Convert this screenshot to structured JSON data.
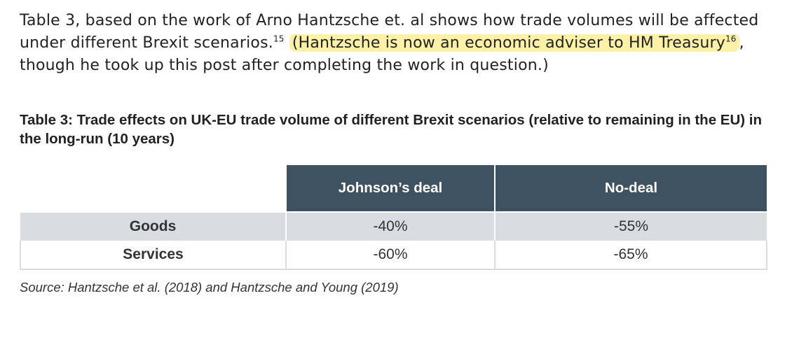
{
  "paragraph": {
    "text_before": "Table 3, based on the work of Arno Hantzsche et. al shows how trade volumes will be affected under different Brexit scenarios.",
    "footnote_15": "15",
    "space": " ",
    "highlight_part1": "(Hantzsche is now an economic adviser to HM Treasury",
    "footnote_16": "16",
    "text_after": ", though he took up this post after completing the work in question.)"
  },
  "table": {
    "caption": "Table 3: Trade effects on UK-EU trade volume of different Brexit scenarios (relative to remaining in the EU) in the long-run (10 years)",
    "columns": [
      "",
      "Johnson’s deal",
      "No-deal"
    ],
    "rows": [
      {
        "label": "Goods",
        "johnsons_deal": "-40%",
        "no_deal": "-55%"
      },
      {
        "label": "Services",
        "johnsons_deal": "-60%",
        "no_deal": "-65%"
      }
    ],
    "source": "Source: Hantzsche et al. (2018) and Hantzsche and Young (2019)"
  },
  "colors": {
    "header_bg": "#3f5262",
    "goods_row_bg": "#d9dde1",
    "highlight": "#fdf1a8"
  }
}
